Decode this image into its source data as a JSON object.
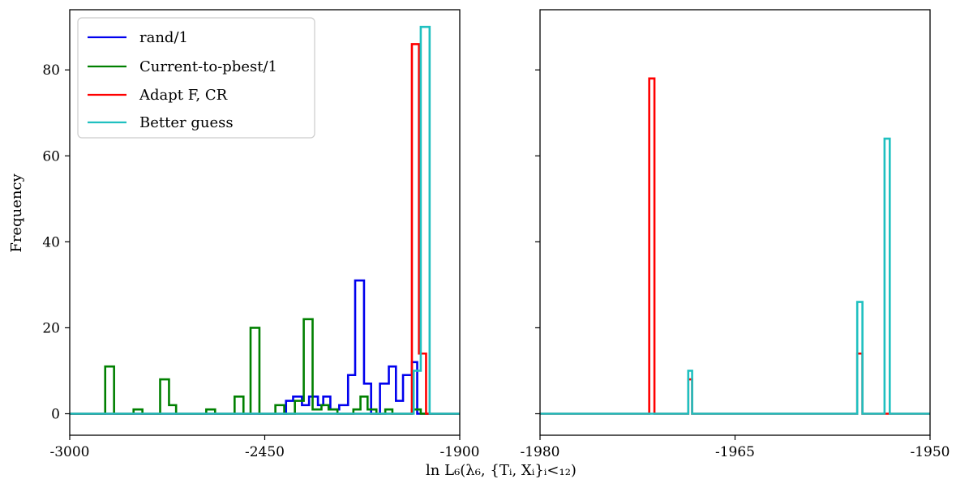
{
  "figure": {
    "ylabel": "Frequency",
    "xlabel": "ln L₆(λ₆, {Tᵢ, Xᵢ}ᵢ<₁₂)"
  },
  "colors": {
    "rand1": "#0000ee",
    "pbest": "#008000",
    "adapt": "#ff0000",
    "better": "#1fc0c0"
  },
  "chart_data": [
    {
      "type": "histogram",
      "panel": "left",
      "xlim": [
        -3000,
        -1900
      ],
      "ylim": [
        -5,
        94
      ],
      "xticks": [
        -3000,
        -2450,
        -1900
      ],
      "xtick_labels": [
        "-3000",
        "-2450",
        "-1900"
      ],
      "yticks": [
        0,
        20,
        40,
        60,
        80
      ],
      "ytick_labels": [
        "0",
        "20",
        "40",
        "60",
        "80"
      ],
      "legend": {
        "position": "upper left",
        "entries": [
          "rand/1",
          "Current-to-pbest/1",
          "Adapt F, CR",
          "Better guess"
        ]
      },
      "series": [
        {
          "name": "rand/1",
          "color_key": "rand1",
          "bins": [
            [
              -3000,
              -2390,
              0
            ],
            [
              -2390,
              -2370,
              3
            ],
            [
              -2370,
              -2345,
              4
            ],
            [
              -2345,
              -2325,
              2
            ],
            [
              -2325,
              -2300,
              4
            ],
            [
              -2300,
              -2285,
              2
            ],
            [
              -2285,
              -2265,
              4
            ],
            [
              -2265,
              -2240,
              1
            ],
            [
              -2240,
              -2215,
              2
            ],
            [
              -2215,
              -2195,
              9
            ],
            [
              -2195,
              -2170,
              31
            ],
            [
              -2170,
              -2150,
              7
            ],
            [
              -2150,
              -2125,
              0
            ],
            [
              -2125,
              -2100,
              7
            ],
            [
              -2100,
              -2080,
              11
            ],
            [
              -2080,
              -2060,
              3
            ],
            [
              -2060,
              -2035,
              9
            ],
            [
              -2035,
              -2020,
              12
            ],
            [
              -2020,
              -1900,
              0
            ]
          ]
        },
        {
          "name": "Current-to-pbest/1",
          "color_key": "pbest",
          "bins": [
            [
              -3000,
              -2900,
              0
            ],
            [
              -2900,
              -2875,
              11
            ],
            [
              -2875,
              -2820,
              0
            ],
            [
              -2820,
              -2795,
              1
            ],
            [
              -2795,
              -2745,
              0
            ],
            [
              -2745,
              -2720,
              8
            ],
            [
              -2720,
              -2700,
              2
            ],
            [
              -2700,
              -2615,
              0
            ],
            [
              -2615,
              -2590,
              1
            ],
            [
              -2590,
              -2535,
              0
            ],
            [
              -2535,
              -2510,
              4
            ],
            [
              -2510,
              -2490,
              0
            ],
            [
              -2490,
              -2465,
              20
            ],
            [
              -2465,
              -2420,
              0
            ],
            [
              -2420,
              -2395,
              2
            ],
            [
              -2395,
              -2365,
              0
            ],
            [
              -2365,
              -2340,
              3
            ],
            [
              -2340,
              -2315,
              22
            ],
            [
              -2315,
              -2290,
              1
            ],
            [
              -2290,
              -2270,
              2
            ],
            [
              -2270,
              -2245,
              1
            ],
            [
              -2245,
              -2200,
              0
            ],
            [
              -2200,
              -2180,
              1
            ],
            [
              -2180,
              -2160,
              4
            ],
            [
              -2160,
              -2135,
              1
            ],
            [
              -2135,
              -2110,
              0
            ],
            [
              -2110,
              -2090,
              1
            ],
            [
              -2090,
              -2035,
              0
            ],
            [
              -2035,
              -2010,
              1
            ],
            [
              -2010,
              -1900,
              0
            ]
          ]
        },
        {
          "name": "Adapt F, CR",
          "color_key": "adapt",
          "bins": [
            [
              -3000,
              -2035,
              0
            ],
            [
              -2035,
              -2015,
              86
            ],
            [
              -2015,
              -1995,
              14
            ],
            [
              -1995,
              -1900,
              0
            ]
          ]
        },
        {
          "name": "Better guess",
          "color_key": "better",
          "bins": [
            [
              -3000,
              -2030,
              0
            ],
            [
              -2030,
              -2010,
              10
            ],
            [
              -2010,
              -1985,
              90
            ],
            [
              -1985,
              -1900,
              0
            ]
          ]
        }
      ]
    },
    {
      "type": "histogram",
      "panel": "right",
      "xlim": [
        -1980,
        -1950
      ],
      "ylim": [
        -5,
        94
      ],
      "xticks": [
        -1980,
        -1965,
        -1950
      ],
      "xtick_labels": [
        "-1980",
        "-1965",
        "-1950"
      ],
      "yticks": [
        0,
        20,
        40,
        60,
        80
      ],
      "ytick_labels": [
        "",
        "",
        "",
        "",
        ""
      ],
      "series": [
        {
          "name": "Adapt F, CR",
          "color_key": "adapt",
          "bins": [
            [
              -1980,
              -1971.6,
              0
            ],
            [
              -1971.6,
              -1971.2,
              78
            ],
            [
              -1971.2,
              -1968.6,
              0
            ],
            [
              -1968.6,
              -1968.3,
              8
            ],
            [
              -1968.3,
              -1955.6,
              0
            ],
            [
              -1955.6,
              -1955.2,
              14
            ],
            [
              -1955.2,
              -1950,
              0
            ]
          ]
        },
        {
          "name": "Better guess",
          "color_key": "better",
          "bins": [
            [
              -1980,
              -1968.6,
              0
            ],
            [
              -1968.6,
              -1968.3,
              10
            ],
            [
              -1968.3,
              -1955.6,
              0
            ],
            [
              -1955.6,
              -1955.2,
              26
            ],
            [
              -1955.2,
              -1953.5,
              0
            ],
            [
              -1953.5,
              -1953.1,
              64
            ],
            [
              -1953.1,
              -1950,
              0
            ]
          ]
        }
      ]
    }
  ]
}
